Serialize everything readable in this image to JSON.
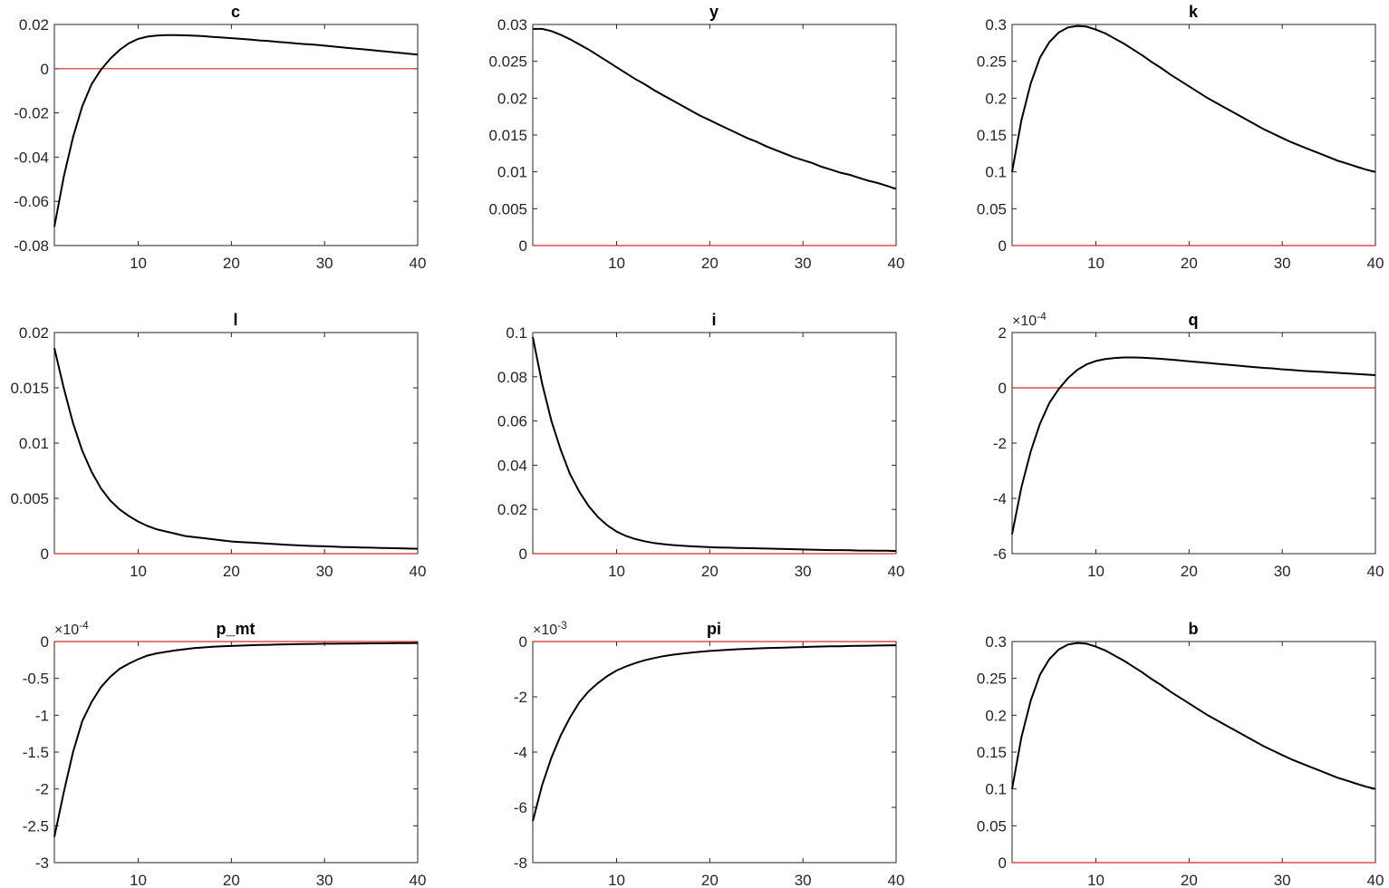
{
  "chart_data": [
    {
      "type": "line",
      "title": "c",
      "exponent": "",
      "xlim": [
        1,
        40
      ],
      "xticks": [
        10,
        20,
        30,
        40
      ],
      "ylim": [
        -0.08,
        0.02
      ],
      "yticks": [
        -0.08,
        -0.06,
        -0.04,
        -0.02,
        0,
        0.02
      ],
      "ytick_labels": [
        "-0.08",
        "-0.06",
        "-0.04",
        "-0.02",
        "0",
        "0.02"
      ],
      "steady_state": 0,
      "line_color": "#000000",
      "steady_state_color": "#d62728",
      "x": [
        1,
        2,
        3,
        4,
        5,
        6,
        7,
        8,
        9,
        10,
        11,
        12,
        13,
        14,
        15,
        16,
        17,
        18,
        19,
        20,
        21,
        22,
        23,
        24,
        25,
        26,
        27,
        28,
        29,
        30,
        31,
        32,
        33,
        34,
        35,
        36,
        37,
        38,
        39,
        40
      ],
      "y": [
        -0.0715,
        -0.049,
        -0.031,
        -0.017,
        -0.007,
        -0.0005,
        0.0045,
        0.0085,
        0.0115,
        0.0135,
        0.0145,
        0.015,
        0.0152,
        0.0152,
        0.0151,
        0.0149,
        0.0147,
        0.0144,
        0.0141,
        0.0138,
        0.0135,
        0.0132,
        0.0128,
        0.0125,
        0.0121,
        0.0118,
        0.0114,
        0.0111,
        0.0108,
        0.0104,
        0.01,
        0.0096,
        0.0092,
        0.0088,
        0.0084,
        0.008,
        0.0076,
        0.0072,
        0.0068,
        0.0064
      ]
    },
    {
      "type": "line",
      "title": "y",
      "exponent": "",
      "xlim": [
        1,
        40
      ],
      "xticks": [
        10,
        20,
        30,
        40
      ],
      "ylim": [
        0,
        0.03
      ],
      "yticks": [
        0,
        0.005,
        0.01,
        0.015,
        0.02,
        0.025,
        0.03
      ],
      "ytick_labels": [
        "0",
        "0.005",
        "0.01",
        "0.015",
        "0.02",
        "0.025",
        "0.03"
      ],
      "steady_state": 0,
      "line_color": "#000000",
      "steady_state_color": "#d62728",
      "x": [
        1,
        2,
        3,
        4,
        5,
        6,
        7,
        8,
        9,
        10,
        11,
        12,
        13,
        14,
        15,
        16,
        17,
        18,
        19,
        20,
        21,
        22,
        23,
        24,
        25,
        26,
        27,
        28,
        29,
        30,
        31,
        32,
        33,
        34,
        35,
        36,
        37,
        38,
        39,
        40
      ],
      "y": [
        0.0294,
        0.0294,
        0.0291,
        0.0286,
        0.028,
        0.0273,
        0.0266,
        0.0258,
        0.025,
        0.0242,
        0.0234,
        0.0226,
        0.0219,
        0.0211,
        0.0204,
        0.0197,
        0.019,
        0.0183,
        0.0176,
        0.017,
        0.0164,
        0.0158,
        0.0152,
        0.0146,
        0.0141,
        0.0135,
        0.013,
        0.0125,
        0.012,
        0.0116,
        0.0112,
        0.0107,
        0.0103,
        0.0099,
        0.0096,
        0.0092,
        0.0088,
        0.0085,
        0.0081,
        0.0077
      ]
    },
    {
      "type": "line",
      "title": "k",
      "exponent": "",
      "xlim": [
        1,
        40
      ],
      "xticks": [
        10,
        20,
        30,
        40
      ],
      "ylim": [
        0,
        0.3
      ],
      "yticks": [
        0,
        0.05,
        0.1,
        0.15,
        0.2,
        0.25,
        0.3
      ],
      "ytick_labels": [
        "0",
        "0.05",
        "0.1",
        "0.15",
        "0.2",
        "0.25",
        "0.3"
      ],
      "steady_state": 0,
      "line_color": "#000000",
      "steady_state_color": "#d62728",
      "x": [
        1,
        2,
        3,
        4,
        5,
        6,
        7,
        8,
        9,
        10,
        11,
        12,
        13,
        14,
        15,
        16,
        17,
        18,
        19,
        20,
        21,
        22,
        23,
        24,
        25,
        26,
        27,
        28,
        29,
        30,
        31,
        32,
        33,
        34,
        35,
        36,
        37,
        38,
        39,
        40
      ],
      "y": [
        0.1,
        0.17,
        0.22,
        0.255,
        0.276,
        0.289,
        0.296,
        0.298,
        0.297,
        0.293,
        0.288,
        0.281,
        0.274,
        0.266,
        0.258,
        0.249,
        0.241,
        0.232,
        0.224,
        0.216,
        0.208,
        0.2,
        0.193,
        0.186,
        0.179,
        0.172,
        0.165,
        0.158,
        0.152,
        0.146,
        0.14,
        0.135,
        0.13,
        0.125,
        0.12,
        0.115,
        0.111,
        0.107,
        0.103,
        0.1
      ]
    },
    {
      "type": "line",
      "title": "l",
      "exponent": "",
      "xlim": [
        1,
        40
      ],
      "xticks": [
        10,
        20,
        30,
        40
      ],
      "ylim": [
        0,
        0.02
      ],
      "yticks": [
        0,
        0.005,
        0.01,
        0.015,
        0.02
      ],
      "ytick_labels": [
        "0",
        "0.005",
        "0.01",
        "0.015",
        "0.02"
      ],
      "steady_state": 0,
      "line_color": "#000000",
      "steady_state_color": "#d62728",
      "x": [
        1,
        2,
        3,
        4,
        5,
        6,
        7,
        8,
        9,
        10,
        11,
        12,
        13,
        14,
        15,
        16,
        17,
        18,
        19,
        20,
        21,
        22,
        23,
        24,
        25,
        26,
        27,
        28,
        29,
        30,
        31,
        32,
        33,
        34,
        35,
        36,
        37,
        38,
        39,
        40
      ],
      "y": [
        0.0186,
        0.015,
        0.0118,
        0.0093,
        0.0074,
        0.0059,
        0.0048,
        0.004,
        0.0034,
        0.0029,
        0.0025,
        0.0022,
        0.002,
        0.0018,
        0.0016,
        0.0015,
        0.0014,
        0.0013,
        0.0012,
        0.0011,
        0.00105,
        0.001,
        0.00095,
        0.0009,
        0.00085,
        0.0008,
        0.00076,
        0.00072,
        0.00069,
        0.00066,
        0.00063,
        0.0006,
        0.00058,
        0.00056,
        0.00054,
        0.00052,
        0.0005,
        0.00048,
        0.00046,
        0.00044
      ]
    },
    {
      "type": "line",
      "title": "i",
      "exponent": "",
      "xlim": [
        1,
        40
      ],
      "xticks": [
        10,
        20,
        30,
        40
      ],
      "ylim": [
        0,
        0.1
      ],
      "yticks": [
        0,
        0.02,
        0.04,
        0.06,
        0.08,
        0.1
      ],
      "ytick_labels": [
        "0",
        "0.02",
        "0.04",
        "0.06",
        "0.08",
        "0.1"
      ],
      "steady_state": 0,
      "line_color": "#000000",
      "steady_state_color": "#d62728",
      "x": [
        1,
        2,
        3,
        4,
        5,
        6,
        7,
        8,
        9,
        10,
        11,
        12,
        13,
        14,
        15,
        16,
        17,
        18,
        19,
        20,
        21,
        22,
        23,
        24,
        25,
        26,
        27,
        28,
        29,
        30,
        31,
        32,
        33,
        34,
        35,
        36,
        37,
        38,
        39,
        40
      ],
      "y": [
        0.098,
        0.077,
        0.06,
        0.047,
        0.036,
        0.028,
        0.0215,
        0.0165,
        0.0128,
        0.01,
        0.008,
        0.0066,
        0.0056,
        0.0048,
        0.0043,
        0.0039,
        0.0036,
        0.0033,
        0.0031,
        0.0029,
        0.0028,
        0.0027,
        0.0026,
        0.0025,
        0.0024,
        0.0023,
        0.0022,
        0.0021,
        0.002,
        0.0019,
        0.0018,
        0.0017,
        0.0016,
        0.0016,
        0.0015,
        0.0014,
        0.0014,
        0.0013,
        0.0013,
        0.0012
      ]
    },
    {
      "type": "line",
      "title": "q",
      "exponent": "×10^-4",
      "xlim": [
        1,
        40
      ],
      "xticks": [
        10,
        20,
        30,
        40
      ],
      "ylim": [
        -6,
        2
      ],
      "yticks": [
        -6,
        -4,
        -2,
        0,
        2
      ],
      "ytick_labels": [
        "-6",
        "-4",
        "-2",
        "0",
        "2"
      ],
      "steady_state": 0,
      "line_color": "#000000",
      "steady_state_color": "#d62728",
      "x": [
        1,
        2,
        3,
        4,
        5,
        6,
        7,
        8,
        9,
        10,
        11,
        12,
        13,
        14,
        15,
        16,
        17,
        18,
        19,
        20,
        21,
        22,
        23,
        24,
        25,
        26,
        27,
        28,
        29,
        30,
        31,
        32,
        33,
        34,
        35,
        36,
        37,
        38,
        39,
        40
      ],
      "y": [
        -5.3,
        -3.6,
        -2.3,
        -1.3,
        -0.55,
        -0.05,
        0.35,
        0.65,
        0.85,
        0.97,
        1.04,
        1.08,
        1.1,
        1.1,
        1.09,
        1.07,
        1.05,
        1.02,
        0.99,
        0.96,
        0.93,
        0.9,
        0.87,
        0.84,
        0.81,
        0.78,
        0.75,
        0.72,
        0.7,
        0.67,
        0.65,
        0.62,
        0.6,
        0.58,
        0.56,
        0.54,
        0.52,
        0.5,
        0.48,
        0.46
      ]
    },
    {
      "type": "line",
      "title": "p_mt",
      "exponent": "×10^-4",
      "xlim": [
        1,
        40
      ],
      "xticks": [
        10,
        20,
        30,
        40
      ],
      "ylim": [
        -3,
        0
      ],
      "yticks": [
        -3,
        -2.5,
        -2,
        -1.5,
        -1,
        -0.5,
        0
      ],
      "ytick_labels": [
        "-3",
        "-2.5",
        "-2",
        "-1.5",
        "-1",
        "-0.5",
        "0"
      ],
      "steady_state": 0,
      "line_color": "#000000",
      "steady_state_color": "#d62728",
      "x": [
        1,
        2,
        3,
        4,
        5,
        6,
        7,
        8,
        9,
        10,
        11,
        12,
        13,
        14,
        15,
        16,
        17,
        18,
        19,
        20,
        21,
        22,
        23,
        24,
        25,
        26,
        27,
        28,
        29,
        30,
        31,
        32,
        33,
        34,
        35,
        36,
        37,
        38,
        39,
        40
      ],
      "y": [
        -2.65,
        -2.05,
        -1.5,
        -1.08,
        -0.82,
        -0.62,
        -0.48,
        -0.37,
        -0.3,
        -0.24,
        -0.19,
        -0.16,
        -0.14,
        -0.12,
        -0.105,
        -0.09,
        -0.08,
        -0.07,
        -0.065,
        -0.06,
        -0.055,
        -0.05,
        -0.047,
        -0.044,
        -0.041,
        -0.038,
        -0.036,
        -0.034,
        -0.032,
        -0.03,
        -0.029,
        -0.028,
        -0.027,
        -0.026,
        -0.025,
        -0.024,
        -0.023,
        -0.022,
        -0.021,
        -0.02
      ]
    },
    {
      "type": "line",
      "title": "pi",
      "exponent": "×10^-3",
      "xlim": [
        1,
        40
      ],
      "xticks": [
        10,
        20,
        30,
        40
      ],
      "ylim": [
        -8,
        0
      ],
      "yticks": [
        -8,
        -6,
        -4,
        -2,
        0
      ],
      "ytick_labels": [
        "-8",
        "-6",
        "-4",
        "-2",
        "0"
      ],
      "steady_state": 0,
      "line_color": "#000000",
      "steady_state_color": "#d62728",
      "x": [
        1,
        2,
        3,
        4,
        5,
        6,
        7,
        8,
        9,
        10,
        11,
        12,
        13,
        14,
        15,
        16,
        17,
        18,
        19,
        20,
        21,
        22,
        23,
        24,
        25,
        26,
        27,
        28,
        29,
        30,
        31,
        32,
        33,
        34,
        35,
        36,
        37,
        38,
        39,
        40
      ],
      "y": [
        -6.5,
        -5.2,
        -4.2,
        -3.4,
        -2.75,
        -2.2,
        -1.8,
        -1.5,
        -1.25,
        -1.05,
        -0.9,
        -0.78,
        -0.68,
        -0.6,
        -0.53,
        -0.48,
        -0.44,
        -0.4,
        -0.37,
        -0.34,
        -0.32,
        -0.3,
        -0.28,
        -0.265,
        -0.25,
        -0.24,
        -0.23,
        -0.22,
        -0.21,
        -0.2,
        -0.19,
        -0.18,
        -0.175,
        -0.17,
        -0.16,
        -0.155,
        -0.15,
        -0.145,
        -0.14,
        -0.135
      ]
    },
    {
      "type": "line",
      "title": "b",
      "exponent": "",
      "xlim": [
        1,
        40
      ],
      "xticks": [
        10,
        20,
        30,
        40
      ],
      "ylim": [
        0,
        0.3
      ],
      "yticks": [
        0,
        0.05,
        0.1,
        0.15,
        0.2,
        0.25,
        0.3
      ],
      "ytick_labels": [
        "0",
        "0.05",
        "0.1",
        "0.15",
        "0.2",
        "0.25",
        "0.3"
      ],
      "steady_state": 0,
      "line_color": "#000000",
      "steady_state_color": "#d62728",
      "x": [
        1,
        2,
        3,
        4,
        5,
        6,
        7,
        8,
        9,
        10,
        11,
        12,
        13,
        14,
        15,
        16,
        17,
        18,
        19,
        20,
        21,
        22,
        23,
        24,
        25,
        26,
        27,
        28,
        29,
        30,
        31,
        32,
        33,
        34,
        35,
        36,
        37,
        38,
        39,
        40
      ],
      "y": [
        0.1,
        0.17,
        0.22,
        0.255,
        0.276,
        0.289,
        0.296,
        0.298,
        0.297,
        0.293,
        0.288,
        0.281,
        0.274,
        0.266,
        0.258,
        0.249,
        0.241,
        0.232,
        0.224,
        0.216,
        0.208,
        0.2,
        0.193,
        0.186,
        0.179,
        0.172,
        0.165,
        0.158,
        0.152,
        0.146,
        0.14,
        0.135,
        0.13,
        0.125,
        0.12,
        0.115,
        0.111,
        0.107,
        0.103,
        0.1
      ]
    }
  ]
}
